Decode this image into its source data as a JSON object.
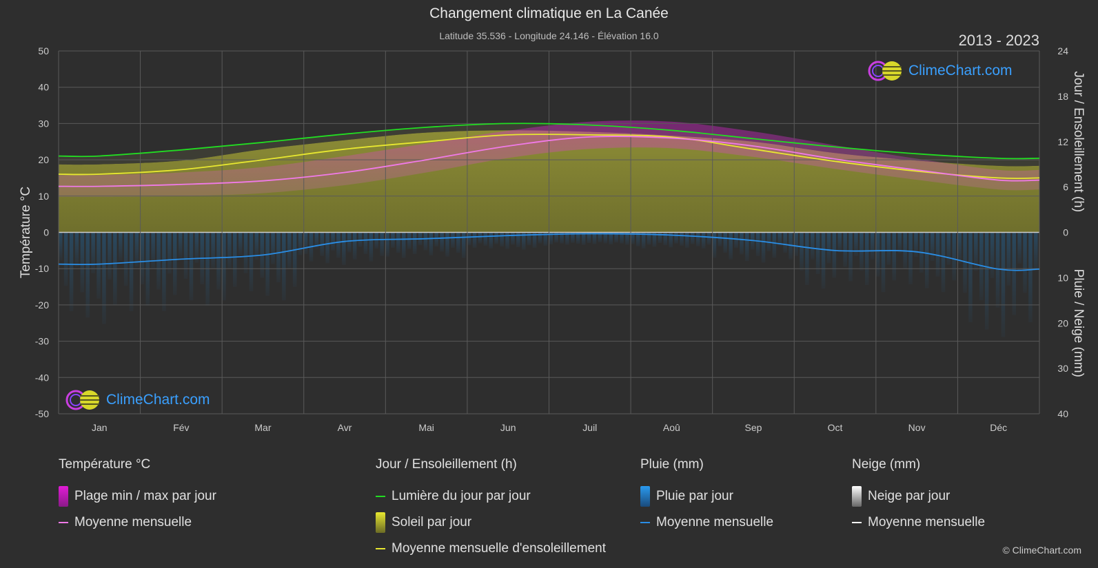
{
  "header": {
    "title": "Changement climatique en La Canée",
    "subtitle": "Latitude 35.536 - Longitude 24.146 - Élévation 16.0",
    "years": "2013 - 2023"
  },
  "logo_text": "ClimeChart.com",
  "copyright": "© ClimeChart.com",
  "colors": {
    "background": "#2e2e2e",
    "temp_range": "#e11bd6",
    "temp_mean": "#f07ae8",
    "daylight": "#22dd22",
    "sunshine_fill": "#8f8f33",
    "sunshine_mean": "#e8e830",
    "rain": "#1f8ee0",
    "rain_mean": "#2a8ee6",
    "snow_mean": "#ffffff"
  },
  "legend": {
    "temperature": {
      "title": "Température °C",
      "items": [
        {
          "label": "Plage min / max par jour",
          "icon": "range-swatch-icon"
        },
        {
          "label": "Moyenne mensuelle",
          "icon": "line-swatch-icon"
        }
      ]
    },
    "sun": {
      "title": "Jour / Ensoleillement (h)",
      "items": [
        {
          "label": "Lumière du jour par jour",
          "icon": "line-swatch-icon"
        },
        {
          "label": "Soleil par jour",
          "icon": "box-swatch-icon"
        },
        {
          "label": "Moyenne mensuelle d'ensoleillement",
          "icon": "line-swatch-icon"
        }
      ]
    },
    "rain": {
      "title": "Pluie (mm)",
      "items": [
        {
          "label": "Pluie par jour",
          "icon": "box-swatch-icon"
        },
        {
          "label": "Moyenne mensuelle",
          "icon": "line-swatch-icon"
        }
      ]
    },
    "snow": {
      "title": "Neige (mm)",
      "items": [
        {
          "label": "Neige par jour",
          "icon": "box-swatch-icon"
        },
        {
          "label": "Moyenne mensuelle",
          "icon": "line-swatch-icon"
        }
      ]
    }
  },
  "chart_data": {
    "type": "line",
    "categories": [
      "Jan",
      "Fév",
      "Mar",
      "Avr",
      "Mai",
      "Jun",
      "Juil",
      "Aoû",
      "Sep",
      "Oct",
      "Nov",
      "Déc"
    ],
    "axes": {
      "left": {
        "label": "Température °C",
        "ylim": [
          -50,
          50
        ],
        "ticks": [
          50,
          40,
          30,
          20,
          10,
          0,
          -10,
          -20,
          -30,
          -40,
          -50
        ]
      },
      "right_top": {
        "label": "Jour / Ensoleillement (h)",
        "ylim": [
          0,
          24
        ],
        "ticks": [
          24,
          18,
          12,
          6,
          0
        ]
      },
      "right_bottom": {
        "label": "Pluie / Neige (mm)",
        "ylim": [
          0,
          40
        ],
        "ticks": [
          0,
          10,
          20,
          30,
          40
        ]
      }
    },
    "grid": true,
    "series": [
      {
        "name": "Lumière du jour par jour",
        "unit": "h",
        "values": [
          10.1,
          10.9,
          11.9,
          13.0,
          13.9,
          14.4,
          14.2,
          13.5,
          12.4,
          11.3,
          10.4,
          9.8
        ]
      },
      {
        "name": "Moyenne mensuelle d'ensoleillement",
        "unit": "h",
        "values": [
          7.7,
          8.3,
          9.6,
          11.0,
          12.0,
          12.9,
          12.9,
          12.6,
          11.0,
          9.4,
          8.1,
          7.2
        ]
      },
      {
        "name": "Soleil par jour (haut de la plage)",
        "unit": "h",
        "values": [
          9.0,
          9.5,
          11.0,
          12.2,
          13.2,
          13.5,
          13.3,
          12.8,
          12.0,
          10.5,
          9.5,
          8.8
        ]
      },
      {
        "name": "Température moyenne mensuelle",
        "unit": "°C",
        "values": [
          12.7,
          13.2,
          14.2,
          16.5,
          20.0,
          23.8,
          26.3,
          26.0,
          23.8,
          20.2,
          17.2,
          14.4
        ]
      },
      {
        "name": "Température max moyenne",
        "unit": "°C",
        "values": [
          15.8,
          16.5,
          18.0,
          21.0,
          24.5,
          28.0,
          30.5,
          30.5,
          27.8,
          24.0,
          20.3,
          17.2
        ]
      },
      {
        "name": "Température min moyenne",
        "unit": "°C",
        "values": [
          9.8,
          10.0,
          10.8,
          13.0,
          16.5,
          20.5,
          23.0,
          23.2,
          20.8,
          17.5,
          14.5,
          11.8
        ]
      },
      {
        "name": "Pluie moyenne mensuelle",
        "unit": "mm",
        "values": [
          7.0,
          5.9,
          5.0,
          2.0,
          1.4,
          0.7,
          0.3,
          0.6,
          1.8,
          4.0,
          4.3,
          8.1
        ]
      },
      {
        "name": "Neige moyenne mensuelle",
        "unit": "mm",
        "values": [
          0,
          0,
          0,
          0,
          0,
          0,
          0,
          0,
          0,
          0,
          0,
          0
        ]
      }
    ]
  }
}
